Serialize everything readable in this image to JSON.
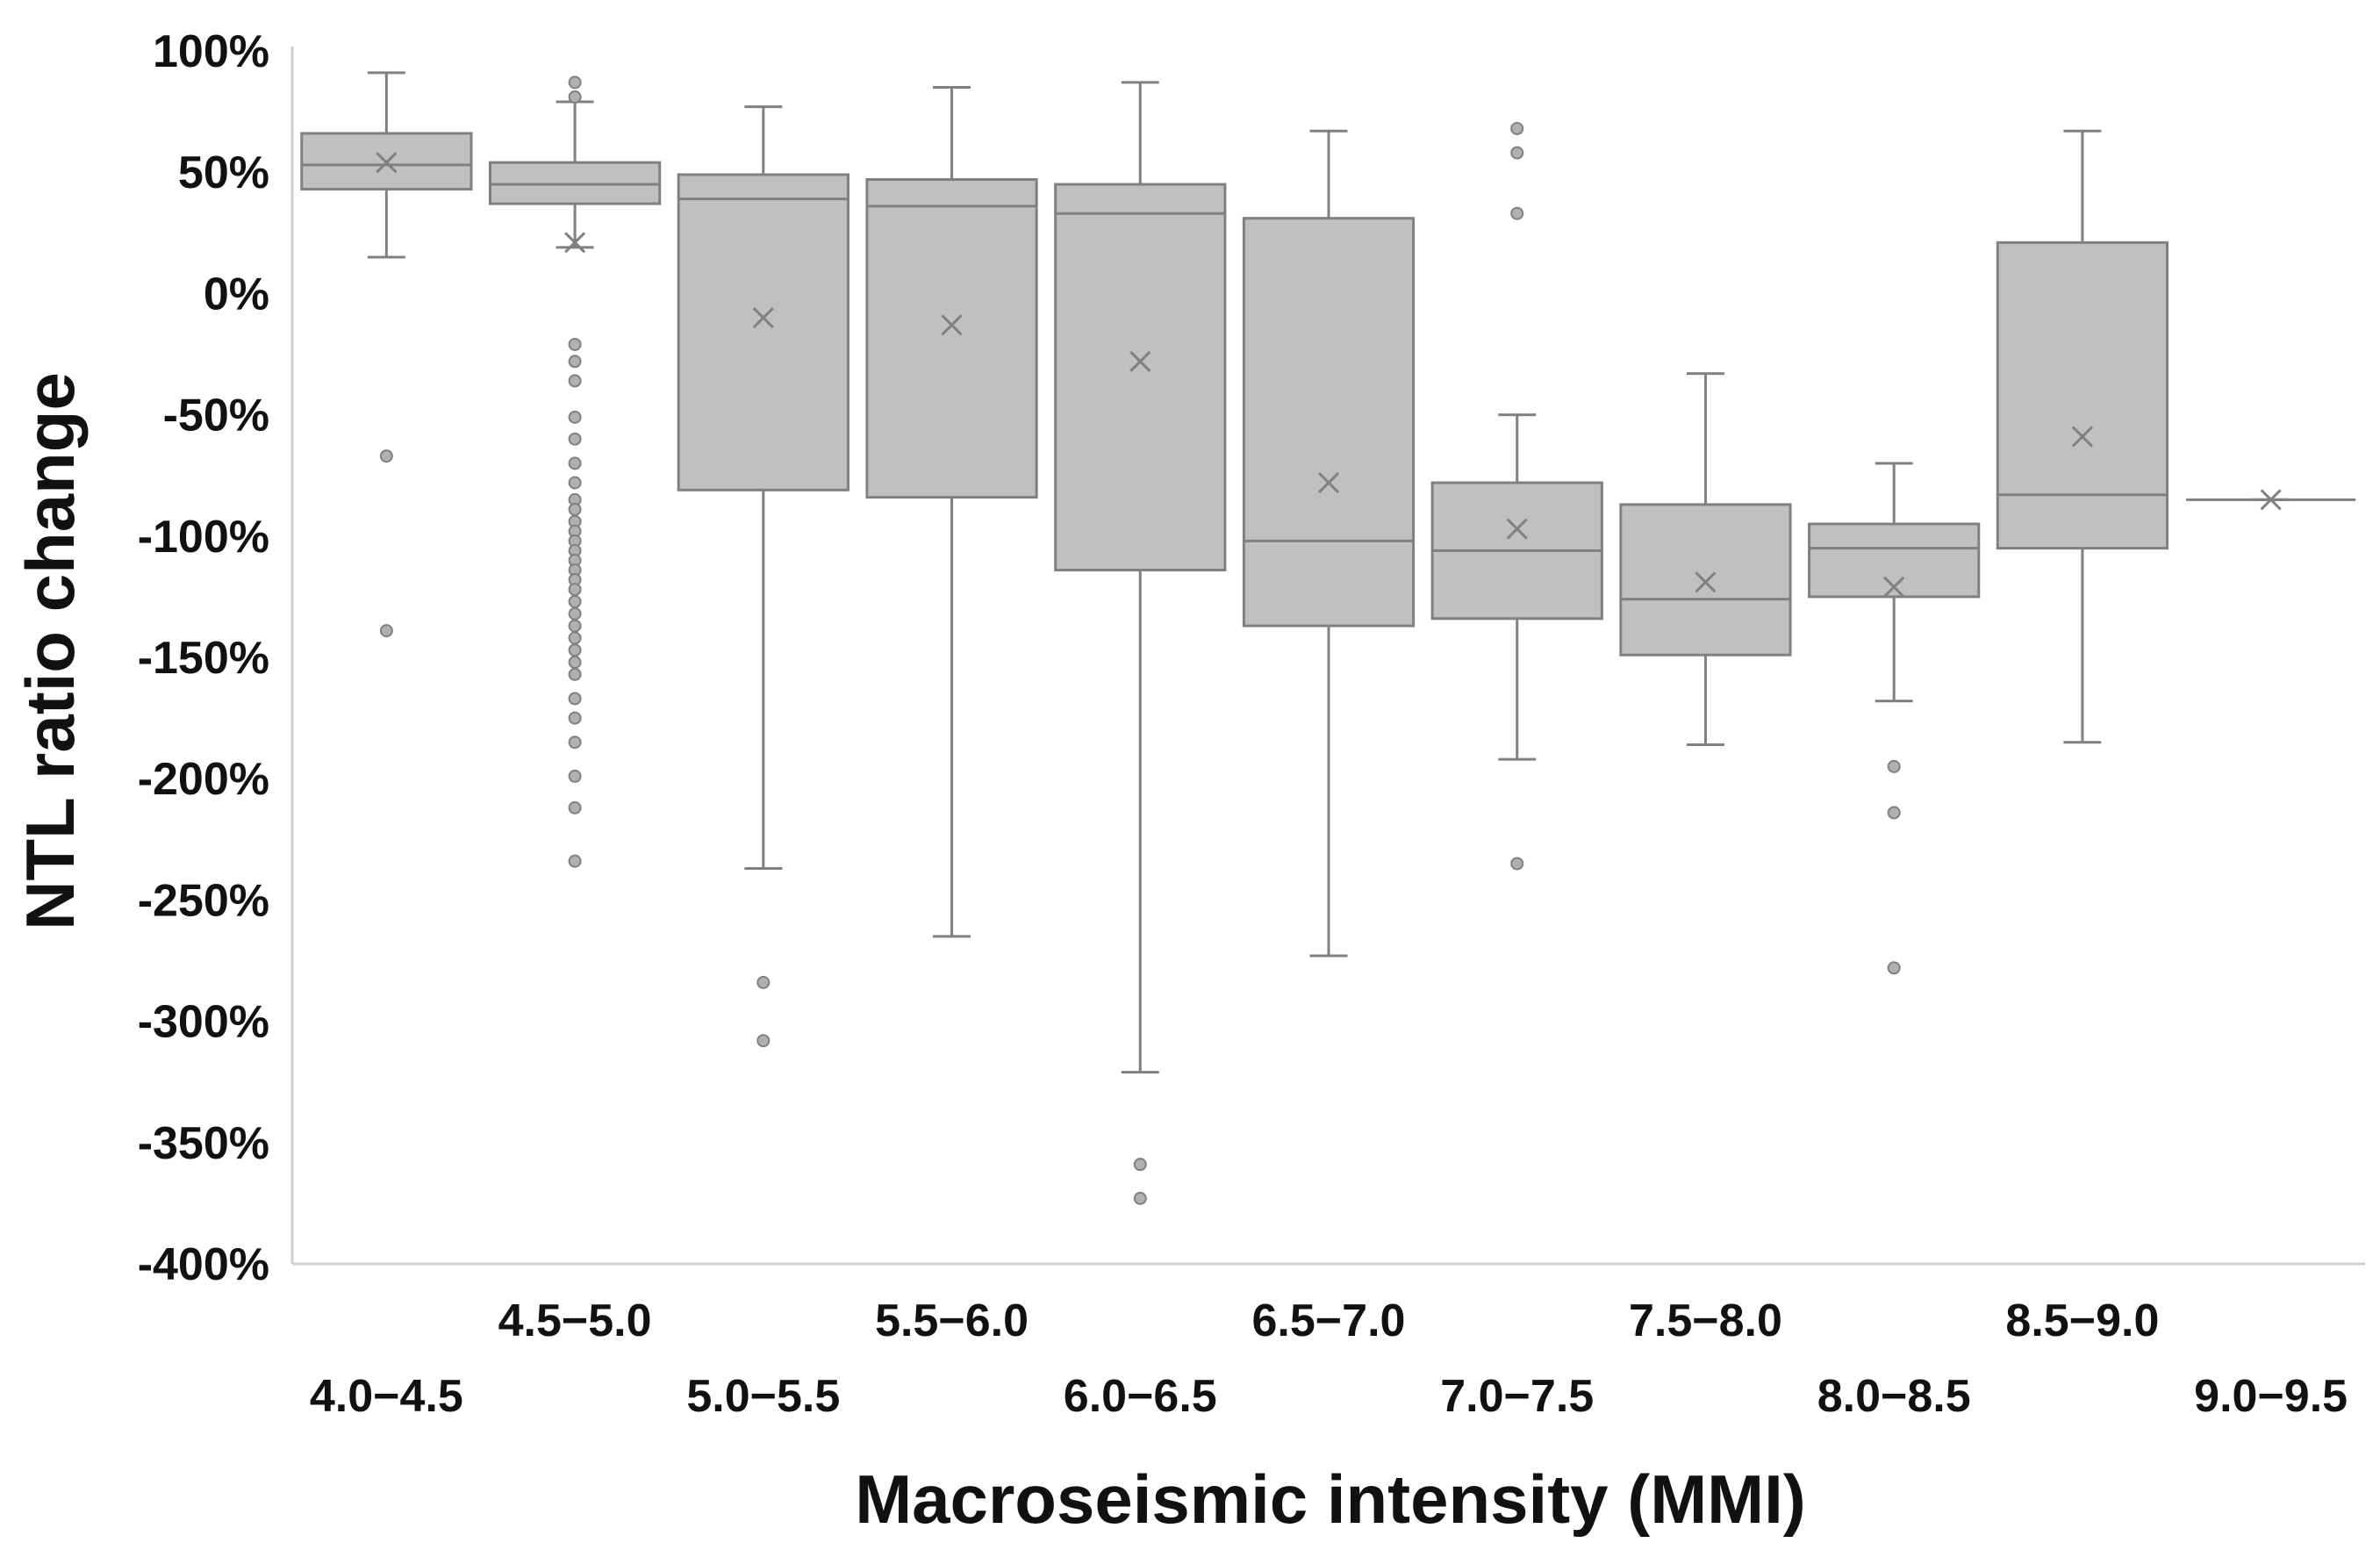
{
  "chart_data": {
    "type": "boxplot",
    "title": "",
    "xlabel": "Macroseismic intensity (MMI)",
    "ylabel": "NTL ratio change",
    "ylim": [
      -400,
      100
    ],
    "yticks": [
      100,
      50,
      0,
      -50,
      -100,
      -150,
      -200,
      -250,
      -300,
      -350,
      -400
    ],
    "ytick_labels": [
      "100%",
      "50%",
      "0%",
      "-50%",
      "-100%",
      "-150%",
      "-200%",
      "-250%",
      "-300%",
      "-350%",
      "-400%"
    ],
    "grid": false,
    "colors": {
      "box_fill": "#c0c0c0",
      "box_stroke": "#808080",
      "axis": "#d0d0d0",
      "outlier_fill": "#b0b0b0",
      "outlier_stroke": "#808080",
      "mean_marker": "#808080"
    },
    "categories": [
      "4.0−4.5",
      "4.5−5.0",
      "5.0−5.5",
      "5.5−6.0",
      "6.0−6.5",
      "6.5−7.0",
      "7.0−7.5",
      "7.5−8.0",
      "8.0−8.5",
      "8.5−9.0",
      "9.0−9.5"
    ],
    "boxes": [
      {
        "category": "4.0−4.5",
        "whisker_low": 15,
        "q1": 43,
        "median": 53,
        "q3": 66,
        "whisker_high": 91,
        "mean": 54,
        "outliers": [
          -67,
          -139
        ]
      },
      {
        "category": "4.5−5.0",
        "whisker_low": 19,
        "q1": 37,
        "median": 45,
        "q3": 54,
        "whisker_high": 79,
        "mean": 21,
        "outliers": [
          87,
          81,
          -21,
          -28,
          -36,
          -51,
          -60,
          -70,
          -78,
          -85,
          -89,
          -94,
          -98,
          -102,
          -106,
          -110,
          -114,
          -118,
          -122,
          -127,
          -132,
          -137,
          -142,
          -147,
          -152,
          -157,
          -167,
          -175,
          -185,
          -199,
          -212,
          -234
        ]
      },
      {
        "category": "5.0−5.5",
        "whisker_low": -237,
        "q1": -81,
        "median": 39,
        "q3": 49,
        "whisker_high": 77,
        "mean": -10,
        "outliers": [
          -284,
          -308
        ]
      },
      {
        "category": "5.5−6.0",
        "whisker_low": -265,
        "q1": -84,
        "median": 36,
        "q3": 47,
        "whisker_high": 85,
        "mean": -13,
        "outliers": []
      },
      {
        "category": "6.0−6.5",
        "whisker_low": -321,
        "q1": -114,
        "median": 33,
        "q3": 45,
        "whisker_high": 87,
        "mean": -28,
        "outliers": [
          -359,
          -373
        ]
      },
      {
        "category": "6.5−7.0",
        "whisker_low": -273,
        "q1": -137,
        "median": -102,
        "q3": 31,
        "whisker_high": 67,
        "mean": -78,
        "outliers": []
      },
      {
        "category": "7.0−7.5",
        "whisker_low": -192,
        "q1": -134,
        "median": -106,
        "q3": -78,
        "whisker_high": -50,
        "mean": -97,
        "outliers": [
          68,
          58,
          33,
          -235
        ]
      },
      {
        "category": "7.5−8.0",
        "whisker_low": -186,
        "q1": -149,
        "median": -126,
        "q3": -87,
        "whisker_high": -33,
        "mean": -119,
        "outliers": []
      },
      {
        "category": "8.0−8.5",
        "whisker_low": -168,
        "q1": -125,
        "median": -105,
        "q3": -95,
        "whisker_high": -70,
        "mean": -121,
        "outliers": [
          -195,
          -214,
          -278
        ]
      },
      {
        "category": "8.5−9.0",
        "whisker_low": -185,
        "q1": -105,
        "median": -83,
        "q3": 21,
        "whisker_high": 67,
        "mean": -59,
        "outliers": []
      },
      {
        "category": "9.0−9.5",
        "whisker_low": -85,
        "q1": -85,
        "median": -85,
        "q3": -85,
        "whisker_high": -85,
        "mean": -85,
        "outliers": []
      }
    ]
  }
}
